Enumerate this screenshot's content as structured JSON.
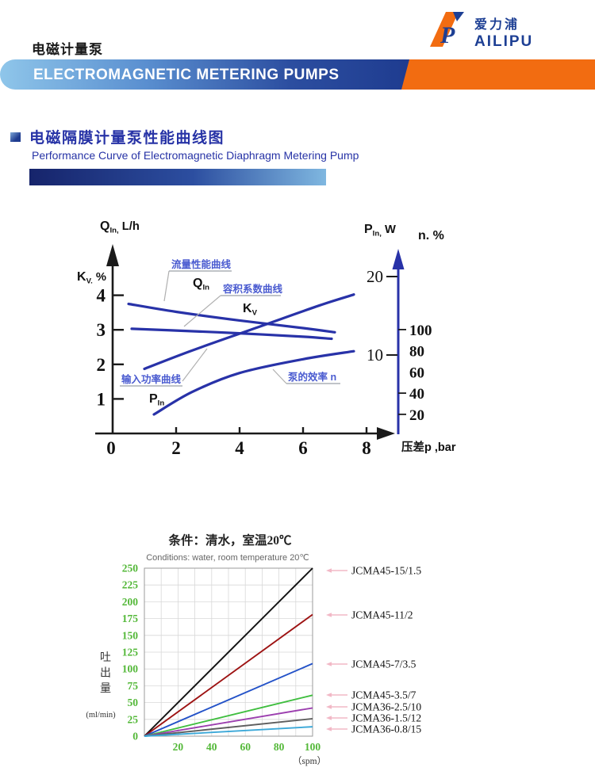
{
  "page": {
    "title_zh": "电磁计量泵",
    "banner_title": "ELECTROMAGNETIC METERING PUMPS"
  },
  "logo": {
    "name_zh": "爱力浦",
    "name_en": "AILIPU",
    "mark_letter": "P"
  },
  "section": {
    "title_zh": "电磁隔膜计量泵性能曲线图",
    "title_en": "Performance Curve of Electromagnetic Diaphragm Metering Pump"
  },
  "chart_data": [
    {
      "type": "line",
      "name": "performance-curves",
      "x_axis": {
        "label": "压差p ,bar",
        "ticks": [
          0,
          2,
          4,
          6,
          8
        ],
        "range": [
          0,
          9
        ]
      },
      "left_axis": {
        "label_top": {
          "sym": "Q",
          "sub": "In,",
          "rest": " L/h"
        },
        "label_side": {
          "sym": "K",
          "sub": "V.",
          "rest": " %"
        },
        "ticks": [
          4,
          3,
          2,
          1
        ]
      },
      "right_axis_p": {
        "label": {
          "sym": "P",
          "sub": "In,",
          "rest": " W"
        },
        "ticks": [
          20,
          10
        ]
      },
      "right_axis_n": {
        "label": "n. %",
        "ticks": [
          100,
          80,
          60,
          40,
          20
        ],
        "ticks_with_mark": [
          100,
          40,
          20
        ]
      },
      "curve_color": "#2832a8",
      "curves": [
        {
          "id": "QIn",
          "label_zh": "流量性能曲线",
          "sym": "Q",
          "sub": "In",
          "points": [
            [
              0.5,
              3.75
            ],
            [
              2,
              3.52
            ],
            [
              4,
              3.27
            ],
            [
              6,
              3.05
            ],
            [
              7,
              2.93
            ]
          ]
        },
        {
          "id": "KV",
          "label_zh": "容积系数曲线",
          "sym": "K",
          "sub": "V",
          "points": [
            [
              0.6,
              3.03
            ],
            [
              2,
              2.98
            ],
            [
              4,
              2.9
            ],
            [
              6,
              2.8
            ],
            [
              6.9,
              2.74
            ]
          ]
        },
        {
          "id": "PIn",
          "label_zh": "输入功率曲线",
          "sym": "P",
          "sub": "In",
          "points": [
            [
              1.0,
              1.87
            ],
            [
              2.5,
              2.4
            ],
            [
              4.5,
              3.05
            ],
            [
              6.5,
              3.7
            ],
            [
              7.6,
              4.02
            ]
          ]
        },
        {
          "id": "n",
          "label_zh": "泵的效率 n",
          "sym": "",
          "sub": "",
          "points": [
            [
              1.3,
              0.55
            ],
            [
              2.5,
              1.2
            ],
            [
              4,
              1.75
            ],
            [
              6,
              2.15
            ],
            [
              7.6,
              2.38
            ]
          ]
        }
      ]
    },
    {
      "type": "line",
      "name": "flow-vs-spm",
      "title_zh": "条件：清水，室温20℃",
      "title_en": "Conditions: water, room temperature 20℃",
      "ylabel_zh": "吐出量",
      "ylabel_unit": "(ml/min)",
      "xlabel": "（spm）",
      "x_range": [
        0,
        100
      ],
      "y_range": [
        0,
        250
      ],
      "x_ticks": [
        20,
        40,
        60,
        80,
        100
      ],
      "y_ticks": [
        0,
        25,
        50,
        75,
        100,
        125,
        150,
        175,
        200,
        225,
        250
      ],
      "grid": true,
      "tick_color": "#53b838",
      "legend_connector_color": "#f2b8c6",
      "series": [
        {
          "name": "JCMA45-15/1.5",
          "color": "#111111",
          "x": [
            0,
            100
          ],
          "values": [
            0,
            250
          ]
        },
        {
          "name": "JCMA45-11/2",
          "color": "#9d1212",
          "x": [
            0,
            100
          ],
          "values": [
            0,
            181
          ]
        },
        {
          "name": "JCMA45-7/3.5",
          "color": "#2352c8",
          "x": [
            0,
            100
          ],
          "values": [
            0,
            108
          ]
        },
        {
          "name": "JCMA45-3.5/7",
          "color": "#3fbe3f",
          "x": [
            0,
            100
          ],
          "values": [
            0,
            61
          ]
        },
        {
          "name": "JCMA36-2.5/10",
          "color": "#9c3faf",
          "x": [
            0,
            100
          ],
          "values": [
            0,
            42
          ]
        },
        {
          "name": "JCMA36-1.5/12",
          "color": "#5e5e5e",
          "x": [
            0,
            100
          ],
          "values": [
            0,
            26
          ]
        },
        {
          "name": "JCMA36-0.8/15",
          "color": "#3ba8d8",
          "x": [
            0,
            100
          ],
          "values": [
            0,
            14
          ]
        }
      ]
    }
  ]
}
